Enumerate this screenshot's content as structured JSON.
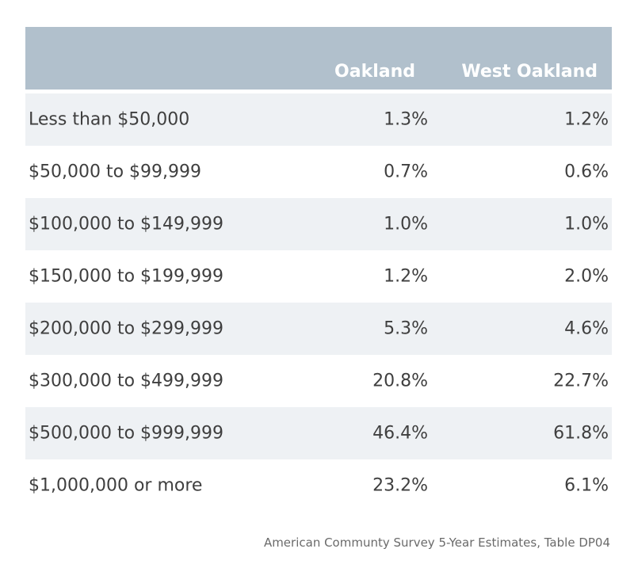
{
  "chart_data": {
    "type": "table",
    "columns": [
      "",
      "Oakland",
      "West Oakland"
    ],
    "rows": [
      {
        "label": "Less than $50,000",
        "oakland": "1.3%",
        "west_oakland": "1.2%"
      },
      {
        "label": "$50,000 to $99,999",
        "oakland": "0.7%",
        "west_oakland": "0.6%"
      },
      {
        "label": "$100,000 to $149,999",
        "oakland": "1.0%",
        "west_oakland": "1.0%"
      },
      {
        "label": "$150,000 to $199,999",
        "oakland": "1.2%",
        "west_oakland": "2.0%"
      },
      {
        "label": "$200,000 to $299,999",
        "oakland": "5.3%",
        "west_oakland": "4.6%"
      },
      {
        "label": "$300,000 to $499,999",
        "oakland": "20.8%",
        "west_oakland": "22.7%"
      },
      {
        "label": "$500,000 to $999,999",
        "oakland": "46.4%",
        "west_oakland": "61.8%"
      },
      {
        "label": "$1,000,000 or more",
        "oakland": "23.2%",
        "west_oakland": "6.1%"
      }
    ],
    "source": "American Communty Survey 5-Year Estimates, Table DP04"
  },
  "colors": {
    "header_bg": "#b1c0cc",
    "header_text": "#ffffff",
    "row_shade": "#eef1f4",
    "body_text": "#3f3f3f"
  }
}
